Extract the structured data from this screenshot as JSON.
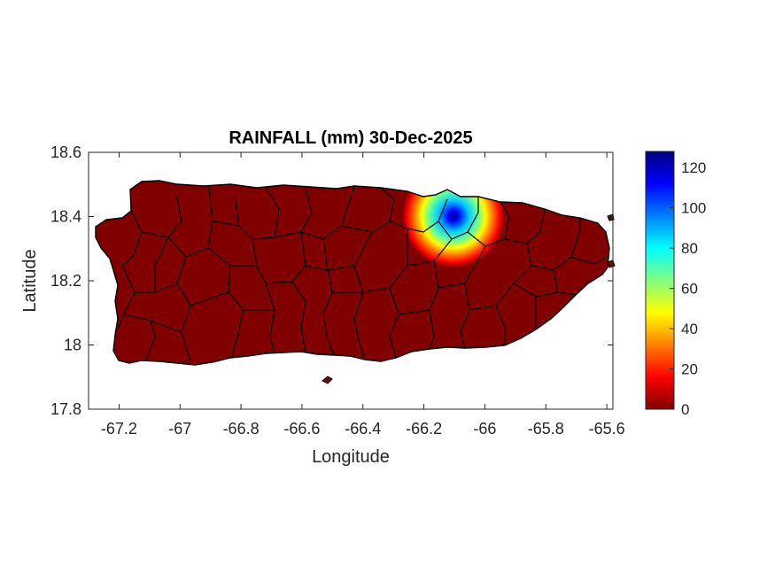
{
  "title": "RAINFALL (mm) 30-Dec-2025",
  "xlabel": "Longitude",
  "ylabel": "Latitude",
  "chart_data": {
    "type": "heatmap",
    "title": "RAINFALL (mm) 30-Dec-2025",
    "xlabel": "Longitude",
    "ylabel": "Latitude",
    "xlim": [
      -67.3,
      -65.58
    ],
    "ylim": [
      17.8,
      18.6
    ],
    "x_ticks": [
      -67.2,
      -67,
      -66.8,
      -66.6,
      -66.4,
      -66.2,
      -66,
      -65.8,
      -65.6
    ],
    "x_tick_labels": [
      "-67.2",
      "-67",
      "-66.8",
      "-66.6",
      "-66.4",
      "-66.2",
      "-66",
      "-65.8",
      "-65.6"
    ],
    "y_ticks": [
      17.8,
      18,
      18.2,
      18.4,
      18.6
    ],
    "y_tick_labels": [
      "17.8",
      "18",
      "18.2",
      "18.4",
      "18.6"
    ],
    "colorbar": {
      "colormap": "jet",
      "range": [
        0,
        128
      ],
      "ticks": [
        0,
        20,
        40,
        60,
        80,
        100,
        120
      ],
      "tick_labels": [
        "0",
        "20",
        "40",
        "60",
        "80",
        "100",
        "120"
      ]
    },
    "background_value_mm": 0,
    "rain_hotspot": {
      "center_lon": -66.12,
      "center_lat": 18.395,
      "peak_mm": 125,
      "radius_deg": 0.09
    },
    "grid": false,
    "region": "Puerto Rico municipalities"
  },
  "colors": {
    "land_zero": "#800000",
    "boundary": "#000000",
    "axis": "#262626"
  }
}
